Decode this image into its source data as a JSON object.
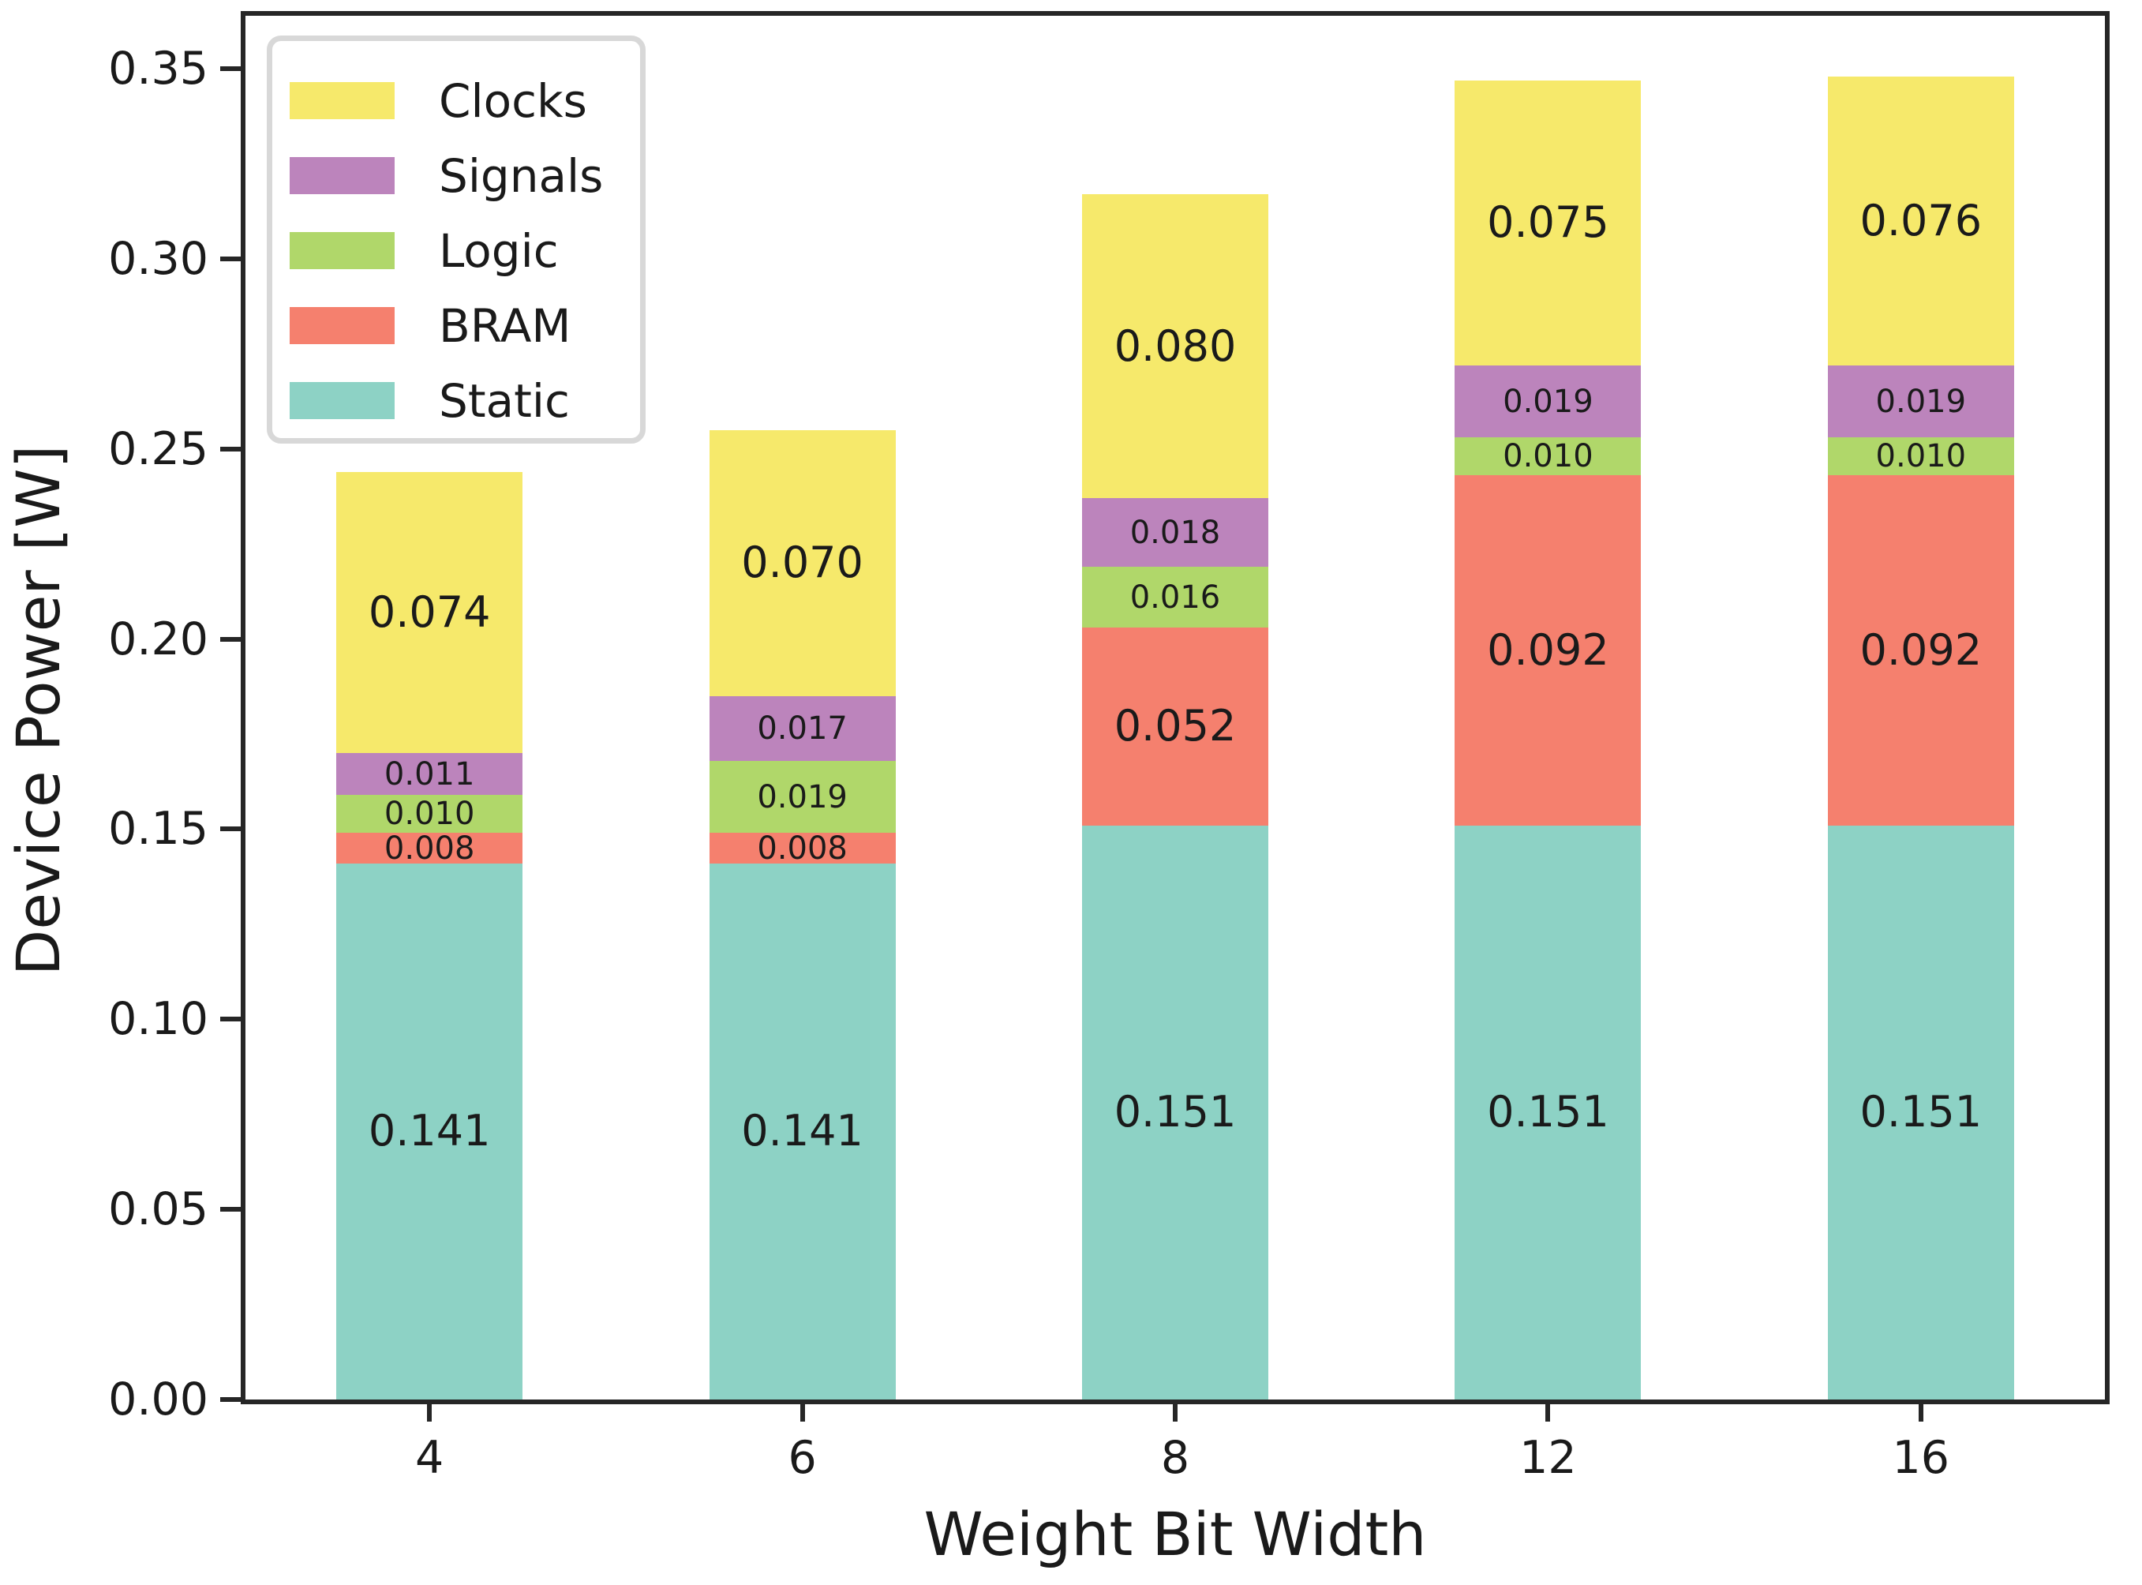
{
  "chart_data": {
    "type": "bar",
    "stacked": true,
    "xlabel": "Weight Bit Width",
    "ylabel": "Device Power [W]",
    "categories": [
      "4",
      "6",
      "8",
      "12",
      "16"
    ],
    "series": [
      {
        "name": "Static",
        "color": "#8dd2c5",
        "values": [
          0.141,
          0.141,
          0.151,
          0.151,
          0.151
        ],
        "labels": [
          "0.141",
          "0.141",
          "0.151",
          "0.151",
          "0.151"
        ]
      },
      {
        "name": "BRAM",
        "color": "#f5806e",
        "values": [
          0.008,
          0.008,
          0.052,
          0.092,
          0.092
        ],
        "labels": [
          "0.008",
          "0.008",
          "0.052",
          "0.092",
          "0.092"
        ]
      },
      {
        "name": "Logic",
        "color": "#b0d76a",
        "values": [
          0.01,
          0.019,
          0.016,
          0.01,
          0.01
        ],
        "labels": [
          "0.010",
          "0.019",
          "0.016",
          "0.010",
          "0.010"
        ]
      },
      {
        "name": "Signals",
        "color": "#bc84bc",
        "values": [
          0.011,
          0.017,
          0.018,
          0.019,
          0.019
        ],
        "labels": [
          "0.011",
          "0.017",
          "0.018",
          "0.019",
          "0.019"
        ]
      },
      {
        "name": "Clocks",
        "color": "#f6e96b",
        "values": [
          0.074,
          0.07,
          0.08,
          0.075,
          0.076
        ],
        "labels": [
          "0.074",
          "0.070",
          "0.080",
          "0.075",
          "0.076"
        ]
      }
    ],
    "legend": {
      "position": "upper left",
      "entries": [
        "Clocks",
        "Signals",
        "Logic",
        "BRAM",
        "Static"
      ]
    },
    "yticks": [
      "0.00",
      "0.05",
      "0.10",
      "0.15",
      "0.20",
      "0.25",
      "0.30",
      "0.35"
    ],
    "ytick_values": [
      0.0,
      0.05,
      0.1,
      0.15,
      0.2,
      0.25,
      0.3,
      0.35
    ],
    "ylim": [
      0,
      0.365
    ],
    "grid": false
  }
}
